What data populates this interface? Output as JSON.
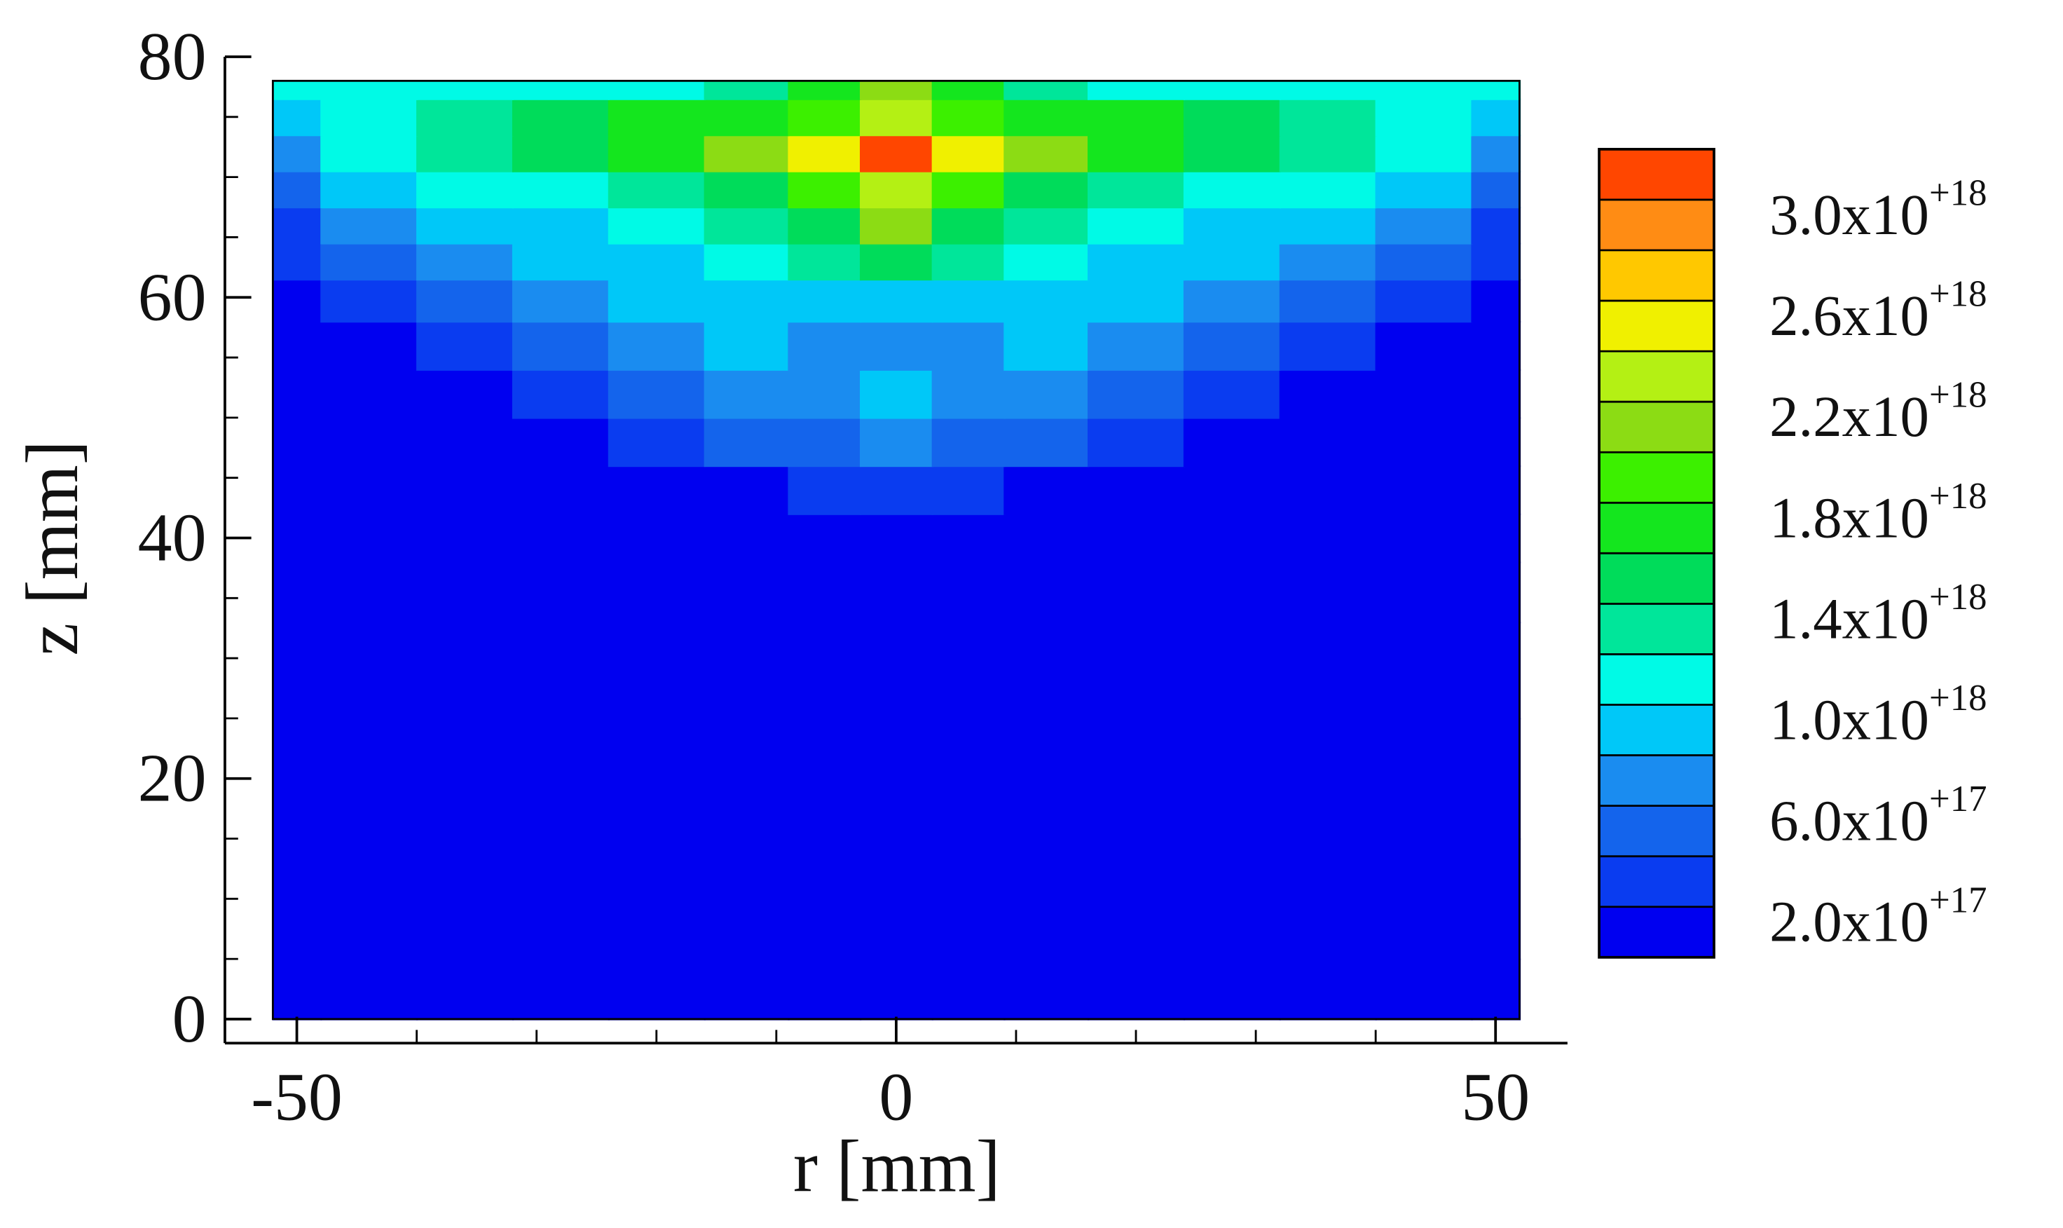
{
  "chart_data": {
    "type": "contour",
    "xlabel": "r [mm]",
    "ylabel": "z [mm]",
    "xlim": [
      -56,
      56
    ],
    "ylim": [
      -2,
      80
    ],
    "xticks": [
      -50,
      0,
      50
    ],
    "yticks": [
      0,
      20,
      40,
      60,
      80
    ],
    "xminor": [
      -40,
      -30,
      -20,
      -10,
      10,
      20,
      30,
      40
    ],
    "yminor": [
      5,
      10,
      15,
      25,
      30,
      35,
      45,
      50,
      55,
      65,
      70,
      75
    ],
    "x": [
      -52,
      -44,
      -36,
      -28,
      -20,
      -12,
      -6,
      0,
      6,
      12,
      20,
      28,
      36,
      44,
      52
    ],
    "y": [
      0,
      10,
      20,
      30,
      36,
      40,
      44,
      48,
      52,
      56,
      60,
      63,
      66,
      69,
      72,
      75,
      78
    ],
    "values": [
      [
        1e+17,
        1e+17,
        1e+17,
        1e+17,
        1e+17,
        1e+17,
        1e+17,
        1e+17,
        1e+17,
        1e+17,
        1e+17,
        1e+17,
        1e+17,
        1e+17,
        1e+17
      ],
      [
        1e+17,
        1e+17,
        1e+17,
        1e+17,
        1e+17,
        1e+17,
        1e+17,
        1e+17,
        1e+17,
        1e+17,
        1e+17,
        1e+17,
        1e+17,
        1e+17,
        1e+17
      ],
      [
        1e+17,
        1e+17,
        1e+17,
        1e+17,
        1e+17,
        1e+17,
        1e+17,
        1e+17,
        1e+17,
        1e+17,
        1e+17,
        1e+17,
        1e+17,
        1e+17,
        1e+17
      ],
      [
        1e+17,
        1e+17,
        1e+17,
        1e+17,
        1e+17,
        1e+17,
        1e+17,
        1e+17,
        1e+17,
        1e+17,
        1e+17,
        1e+17,
        1e+17,
        1e+17,
        1e+17
      ],
      [
        1e+17,
        1e+17,
        1e+17,
        1e+17,
        1e+17,
        1e+17,
        1e+17,
        1e+17,
        1e+17,
        1e+17,
        1e+17,
        1e+17,
        1e+17,
        1e+17,
        1e+17
      ],
      [
        1e+17,
        1e+17,
        1e+17,
        1e+17,
        1e+17,
        1e+17,
        1e+17,
        1e+17,
        1e+17,
        1e+17,
        1e+17,
        1e+17,
        1e+17,
        1e+17,
        1e+17
      ],
      [
        1e+17,
        1e+17,
        1e+17,
        1e+17,
        1e+17,
        1.5e+17,
        3e+17,
        3.8e+17,
        3e+17,
        1.5e+17,
        1e+17,
        1e+17,
        1e+17,
        1e+17,
        1e+17
      ],
      [
        1e+17,
        1e+17,
        1e+17,
        1e+17,
        2.5e+17,
        4e+17,
        5.5e+17,
        6.2e+17,
        5.5e+17,
        4e+17,
        2.5e+17,
        1e+17,
        1e+17,
        1e+17,
        1e+17
      ],
      [
        1e+17,
        1e+17,
        1.5e+17,
        3e+17,
        4.5e+17,
        6e+17,
        7e+17,
        8.5e+17,
        7e+17,
        6e+17,
        4.5e+17,
        3e+17,
        1.5e+17,
        1e+17,
        1e+17
      ],
      [
        1e+17,
        1.8e+17,
        3.5e+17,
        5e+17,
        6.5e+17,
        8e+17,
        7.5e+17,
        7.8e+17,
        7.5e+17,
        8e+17,
        6.5e+17,
        5e+17,
        3.5e+17,
        1.8e+17,
        1e+17
      ],
      [
        1.5e+17,
        3.5e+17,
        5.5e+17,
        7e+17,
        8.5e+17,
        9.8e+17,
        9.5e+17,
        9.5e+17,
        9.5e+17,
        9.8e+17,
        8.5e+17,
        7e+17,
        5.5e+17,
        3.5e+17,
        1.5e+17
      ],
      [
        2e+17,
        5e+17,
        7e+17,
        8.5e+17,
        9.5e+17,
        1e+18,
        1.2e+18,
        1.5e+18,
        1.2e+18,
        1e+18,
        9.5e+17,
        8.5e+17,
        7e+17,
        5e+17,
        2e+17
      ],
      [
        3e+17,
        7e+17,
        8.5e+17,
        9.8e+17,
        1.05e+18,
        1.2e+18,
        1.5e+18,
        2e+18,
        1.5e+18,
        1.2e+18,
        1.05e+18,
        9.8e+17,
        8.5e+17,
        7e+17,
        3e+17
      ],
      [
        5e+17,
        8.5e+17,
        1e+18,
        1.15e+18,
        1.3e+18,
        1.5e+18,
        1.9e+18,
        2.3e+18,
        1.9e+18,
        1.5e+18,
        1.3e+18,
        1.15e+18,
        1e+18,
        8.5e+17,
        5e+17
      ],
      [
        7e+17,
        1.1e+18,
        1.3e+18,
        1.5e+18,
        1.7e+18,
        2e+18,
        2.5e+18,
        3.05e+18,
        2.5e+18,
        2e+18,
        1.7e+18,
        1.5e+18,
        1.3e+18,
        1.1e+18,
        7e+17
      ],
      [
        9e+17,
        1.1e+18,
        1.3e+18,
        1.4e+18,
        1.6e+18,
        1.7e+18,
        1.9e+18,
        2.2e+18,
        1.9e+18,
        1.7e+18,
        1.6e+18,
        1.4e+18,
        1.3e+18,
        1.1e+18,
        9e+17
      ],
      [
        1e+18,
        1e+18,
        1.05e+18,
        1.1e+18,
        1.15e+18,
        1.3e+18,
        1.7e+18,
        2.1e+18,
        1.7e+18,
        1.3e+18,
        1.15e+18,
        1.1e+18,
        1.05e+18,
        1e+18,
        1e+18
      ]
    ],
    "levels": [
      2e+17,
      4e+17,
      6e+17,
      8e+17,
      1e+18,
      1.2e+18,
      1.4e+18,
      1.6e+18,
      1.8e+18,
      2e+18,
      2.2e+18,
      2.4e+18,
      2.6e+18,
      2.8e+18,
      3e+18
    ],
    "colors": [
      "#0000f0",
      "#0a3cf0",
      "#1464ec",
      "#1a8cf0",
      "#00c8f8",
      "#00fae6",
      "#00e69a",
      "#00dc5a",
      "#14e61e",
      "#3cf000",
      "#8cdc14",
      "#b4f014",
      "#f0f000",
      "#ffc800",
      "#ff8c14",
      "#ff4600"
    ],
    "colorbar_ticks": [
      {
        "value": 3e+18,
        "label": "3.0x10",
        "exponent": "+18"
      },
      {
        "value": 2.6e+18,
        "label": "2.6x10",
        "exponent": "+18"
      },
      {
        "value": 2.2e+18,
        "label": "2.2x10",
        "exponent": "+18"
      },
      {
        "value": 1.8e+18,
        "label": "1.8x10",
        "exponent": "+18"
      },
      {
        "value": 1.4e+18,
        "label": "1.4x10",
        "exponent": "+18"
      },
      {
        "value": 1e+18,
        "label": "1.0x10",
        "exponent": "+18"
      },
      {
        "value": 6e+17,
        "label": "6.0x10",
        "exponent": "+17"
      },
      {
        "value": 2e+17,
        "label": "2.0x10",
        "exponent": "+17"
      }
    ]
  }
}
